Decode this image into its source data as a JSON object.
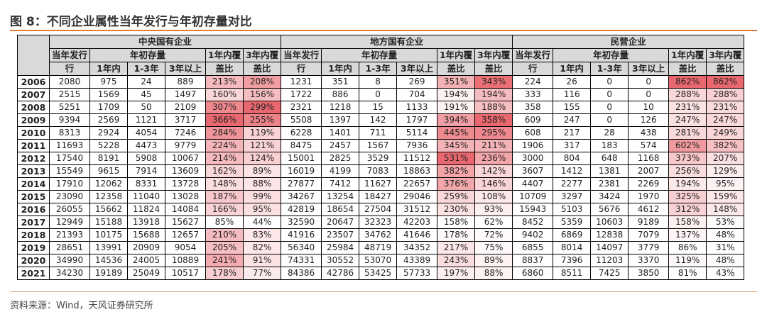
{
  "title": "图 8：不同企业属性当年发行与年初存量对比",
  "source": "资料来源：Wind，天风证券研究所",
  "groups": [
    "中央国有企业",
    "地方国有企业",
    "民营企业"
  ],
  "labels": {
    "issue_top": "当年发行",
    "issue_bottom": "行",
    "stock": "年初存量",
    "cov1_top": "1年内覆",
    "cov1_bottom": "盖比",
    "cov3_top": "3年内覆",
    "cov3_bottom": "盖比",
    "sub1": "1年内",
    "sub2": "1-3年",
    "sub3": "3年以上"
  },
  "colors": {
    "heat_max": "#e9686f",
    "heat_min": "#ffffff",
    "header_bg": "#d9d9d9",
    "accent": "#e07b39"
  },
  "rows": [
    {
      "year": "2006",
      "c": [
        "2080",
        "975",
        "24",
        "889",
        "213%",
        "208%"
      ],
      "l": [
        "1231",
        "351",
        "8",
        "269",
        "351%",
        "343%"
      ],
      "p": [
        "224",
        "26",
        "0",
        "0",
        "862%",
        "862%"
      ]
    },
    {
      "year": "2007",
      "c": [
        "2515",
        "1569",
        "45",
        "1497",
        "160%",
        "156%"
      ],
      "l": [
        "1722",
        "886",
        "0",
        "704",
        "194%",
        "194%"
      ],
      "p": [
        "333",
        "116",
        "0",
        "0",
        "288%",
        "288%"
      ]
    },
    {
      "year": "2008",
      "c": [
        "5251",
        "1709",
        "50",
        "2109",
        "307%",
        "299%"
      ],
      "l": [
        "2321",
        "1218",
        "15",
        "1133",
        "191%",
        "188%"
      ],
      "p": [
        "358",
        "155",
        "0",
        "10",
        "231%",
        "231%"
      ]
    },
    {
      "year": "2009",
      "c": [
        "9394",
        "2569",
        "1121",
        "3717",
        "366%",
        "255%"
      ],
      "l": [
        "5508",
        "1397",
        "142",
        "1797",
        "394%",
        "358%"
      ],
      "p": [
        "609",
        "247",
        "0",
        "126",
        "247%",
        "247%"
      ]
    },
    {
      "year": "2010",
      "c": [
        "8313",
        "2924",
        "4054",
        "7246",
        "284%",
        "119%"
      ],
      "l": [
        "6228",
        "1401",
        "711",
        "5114",
        "445%",
        "295%"
      ],
      "p": [
        "608",
        "217",
        "28",
        "438",
        "281%",
        "249%"
      ]
    },
    {
      "year": "2011",
      "c": [
        "11693",
        "5228",
        "4473",
        "9779",
        "224%",
        "121%"
      ],
      "l": [
        "8475",
        "2457",
        "1567",
        "7936",
        "345%",
        "211%"
      ],
      "p": [
        "1906",
        "317",
        "183",
        "574",
        "602%",
        "382%"
      ]
    },
    {
      "year": "2012",
      "c": [
        "17540",
        "8191",
        "5908",
        "10067",
        "214%",
        "124%"
      ],
      "l": [
        "15001",
        "2825",
        "3529",
        "11512",
        "531%",
        "236%"
      ],
      "p": [
        "3000",
        "804",
        "648",
        "1168",
        "373%",
        "207%"
      ]
    },
    {
      "year": "2013",
      "c": [
        "15549",
        "9615",
        "7914",
        "13609",
        "162%",
        "89%"
      ],
      "l": [
        "16019",
        "4199",
        "7083",
        "18863",
        "382%",
        "142%"
      ],
      "p": [
        "3607",
        "1412",
        "1381",
        "2007",
        "256%",
        "129%"
      ]
    },
    {
      "year": "2014",
      "c": [
        "17910",
        "12062",
        "8331",
        "13728",
        "148%",
        "88%"
      ],
      "l": [
        "27877",
        "7412",
        "11627",
        "22657",
        "376%",
        "146%"
      ],
      "p": [
        "4407",
        "2277",
        "2381",
        "2269",
        "194%",
        "95%"
      ]
    },
    {
      "year": "2015",
      "c": [
        "23090",
        "12358",
        "11040",
        "13028",
        "187%",
        "99%"
      ],
      "l": [
        "34267",
        "13254",
        "18427",
        "29046",
        "259%",
        "108%"
      ],
      "p": [
        "10709",
        "3297",
        "3424",
        "1970",
        "325%",
        "159%"
      ]
    },
    {
      "year": "2016",
      "c": [
        "26055",
        "15662",
        "11824",
        "14084",
        "166%",
        "95%"
      ],
      "l": [
        "42819",
        "18654",
        "27504",
        "31512",
        "230%",
        "93%"
      ],
      "p": [
        "15943",
        "5103",
        "5676",
        "4612",
        "312%",
        "148%"
      ]
    },
    {
      "year": "2017",
      "c": [
        "12949",
        "15188",
        "13918",
        "15627",
        "85%",
        "44%"
      ],
      "l": [
        "32590",
        "20647",
        "32323",
        "42203",
        "158%",
        "62%"
      ],
      "p": [
        "8452",
        "5359",
        "10603",
        "9189",
        "158%",
        "53%"
      ]
    },
    {
      "year": "2018",
      "c": [
        "21393",
        "10175",
        "15688",
        "12657",
        "210%",
        "83%"
      ],
      "l": [
        "41916",
        "23507",
        "34762",
        "41646",
        "178%",
        "72%"
      ],
      "p": [
        "9402",
        "6869",
        "12838",
        "7079",
        "137%",
        "48%"
      ]
    },
    {
      "year": "2019",
      "c": [
        "28651",
        "13991",
        "20909",
        "9054",
        "205%",
        "82%"
      ],
      "l": [
        "56340",
        "25984",
        "48719",
        "34352",
        "217%",
        "75%"
      ],
      "p": [
        "6855",
        "8014",
        "14097",
        "3779",
        "86%",
        "31%"
      ]
    },
    {
      "year": "2020",
      "c": [
        "34990",
        "14536",
        "24005",
        "10889",
        "241%",
        "91%"
      ],
      "l": [
        "74331",
        "30552",
        "53070",
        "43389",
        "243%",
        "89%"
      ],
      "p": [
        "8837",
        "7396",
        "11203",
        "3370",
        "119%",
        "48%"
      ]
    },
    {
      "year": "2021",
      "c": [
        "34230",
        "19189",
        "25049",
        "10517",
        "178%",
        "77%"
      ],
      "l": [
        "84386",
        "42786",
        "53425",
        "57733",
        "197%",
        "88%"
      ],
      "p": [
        "6860",
        "8511",
        "7425",
        "3850",
        "81%",
        "43%"
      ]
    }
  ]
}
